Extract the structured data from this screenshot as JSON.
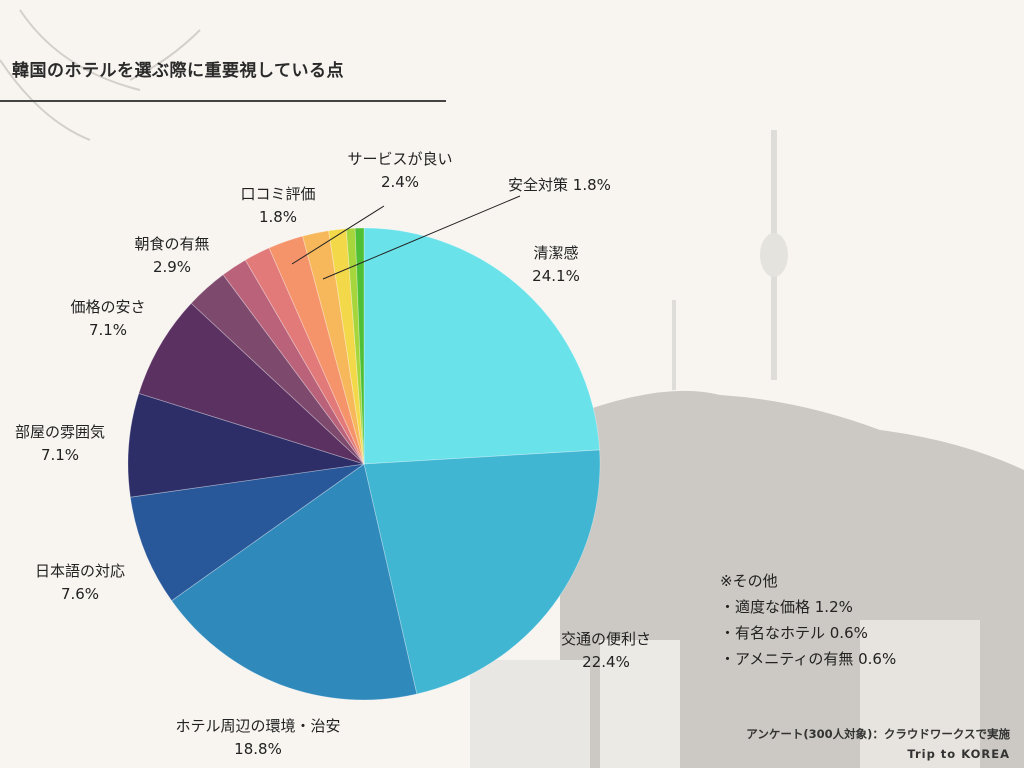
{
  "header": {
    "title": "韓国のホテルを選ぶ際に重要視している点"
  },
  "chart_data": {
    "type": "pie",
    "title": "韓国のホテルを選ぶ際に重要視している点",
    "slices": [
      {
        "label": "清潔感",
        "value_label": "24.1%",
        "value": 24.1,
        "color": "#6ae2ea"
      },
      {
        "label": "交通の便利さ",
        "value_label": "22.4%",
        "value": 22.4,
        "color": "#40b6d3"
      },
      {
        "label": "ホテル周辺の環境・治安",
        "value_label": "18.8%",
        "value": 18.8,
        "color": "#2f89bb"
      },
      {
        "label": "日本語の対応",
        "value_label": "7.6%",
        "value": 7.6,
        "color": "#28579a"
      },
      {
        "label": "部屋の雰囲気",
        "value_label": "7.1%",
        "value": 7.1,
        "color": "#2d2e68"
      },
      {
        "label": "価格の安さ",
        "value_label": "7.1%",
        "value": 7.1,
        "color": "#5b3162"
      },
      {
        "label": "朝食の有無",
        "value_label": "2.9%",
        "value": 2.9,
        "color": "#7d4a6e"
      },
      {
        "label": "口コミ評価",
        "value_label": "1.8%",
        "value": 1.8,
        "color": "#b9627a"
      },
      {
        "label": "口コミ評価",
        "value_label": "1.8%",
        "value": 1.8,
        "color": "#e27a7a"
      },
      {
        "label": "サービスが良い",
        "value_label": "2.4%",
        "value": 2.4,
        "color": "#f5946a"
      },
      {
        "label": "安全対策",
        "value_label": "1.8%",
        "value": 1.8,
        "color": "#f7b85c"
      },
      {
        "label": "適度な価格",
        "value_label": "1.2%",
        "value": 1.2,
        "color": "#f3d94a"
      },
      {
        "label": "有名なホテル",
        "value_label": "0.6%",
        "value": 0.6,
        "color": "#a6d63c"
      },
      {
        "label": "アメニティの有無",
        "value_label": "0.6%",
        "value": 0.6,
        "color": "#4fbf35"
      }
    ]
  },
  "labels": {
    "cleanliness": {
      "name": "清潔感",
      "value": "24.1%"
    },
    "transport": {
      "name": "交通の便利さ",
      "value": "22.4%"
    },
    "environment": {
      "name": "ホテル周辺の環境・治安",
      "value": "18.8%"
    },
    "japanese": {
      "name": "日本語の対応",
      "value": "7.6%"
    },
    "room": {
      "name": "部屋の雰囲気",
      "value": "7.1%"
    },
    "price": {
      "name": "価格の安さ",
      "value": "7.1%"
    },
    "breakfast": {
      "name": "朝食の有無",
      "value": "2.9%"
    },
    "reviews": {
      "name": "口コミ評価",
      "value": "1.8%"
    },
    "service": {
      "name": "サービスが良い",
      "value": "2.4%"
    },
    "safety": {
      "name": "安全対策",
      "value": "1.8%"
    }
  },
  "note": {
    "heading": "※その他",
    "items": [
      "・適度な価格 1.2%",
      "・有名なホテル 0.6%",
      "・アメニティの有無 0.6%"
    ]
  },
  "credit": {
    "survey": "アンケート(300人対象)：クラウドワークスで実施",
    "brand": "Trip to KOREA"
  }
}
